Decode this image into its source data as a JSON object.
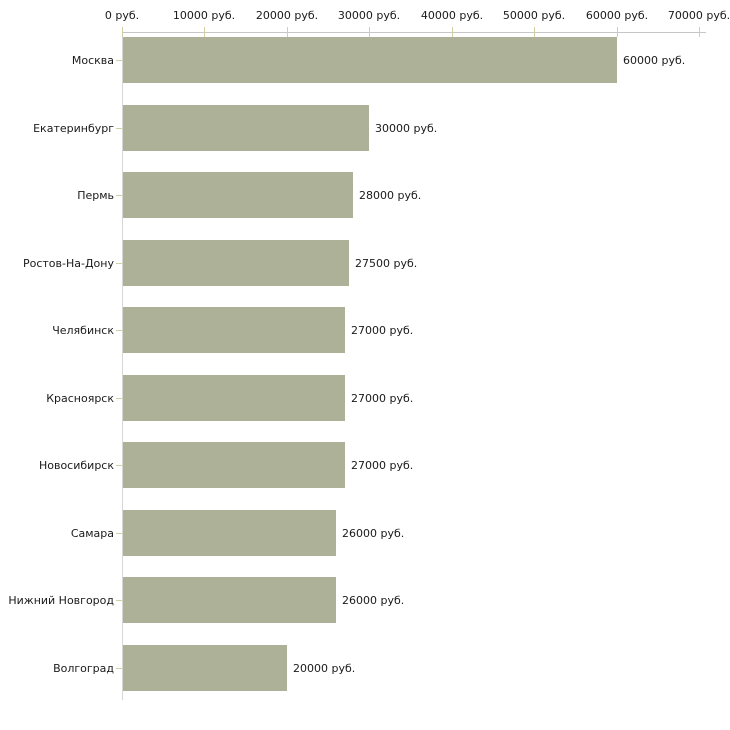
{
  "chart_data": {
    "type": "bar",
    "orientation": "horizontal",
    "title": "",
    "categories": [
      "Москва",
      "Екатеринбург",
      "Пермь",
      "Ростов-На-Дону",
      "Челябинск",
      "Красноярск",
      "Новосибирск",
      "Самара",
      "Нижний Новгород",
      "Волгоград"
    ],
    "values": [
      60000,
      30000,
      28000,
      27500,
      27000,
      27000,
      27000,
      26000,
      26000,
      20000
    ],
    "value_labels": [
      "60000 руб.",
      "30000 руб.",
      "28000 руб.",
      "27500 руб.",
      "27000 руб.",
      "27000 руб.",
      "27000 руб.",
      "26000 руб.",
      "26000 руб.",
      "20000 руб."
    ],
    "x_axis": {
      "position": "top",
      "min": 0,
      "max": 70000,
      "ticks": [
        0,
        10000,
        20000,
        30000,
        40000,
        50000,
        60000,
        70000
      ],
      "tick_labels": [
        "0 руб.",
        "10000 руб.",
        "20000 руб.",
        "30000 руб.",
        "40000 руб.",
        "50000 руб.",
        "60000 руб.",
        "70000 руб."
      ]
    },
    "grid": false,
    "legend": false,
    "colors": {
      "bar": "#adb198",
      "axis_line_x": "#c6c6c6",
      "axis_line_y": "#d6d6d6",
      "tick": "#d2cfa2",
      "text": "#1a1a1a",
      "background": "#ffffff"
    }
  }
}
